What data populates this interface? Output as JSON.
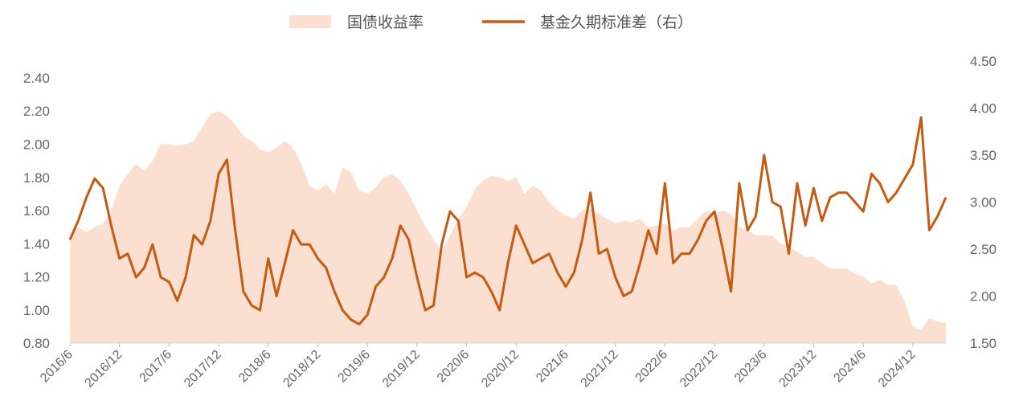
{
  "chart_data": {
    "type": "area",
    "legend": {
      "placement": "top-center",
      "items": [
        {
          "label": "国债收益率",
          "kind": "area",
          "color": "#fbdfd0"
        },
        {
          "label": "基金久期标准差（右）",
          "kind": "line",
          "color": "#c55a11"
        }
      ]
    },
    "x": [
      "2016/6",
      "2016/12",
      "2017/6",
      "2017/12",
      "2018/6",
      "2018/12",
      "2019/6",
      "2019/12",
      "2020/6",
      "2020/12",
      "2021/6",
      "2021/12",
      "2022/6",
      "2022/12",
      "2023/6",
      "2023/12",
      "2024/6",
      "2024/12"
    ],
    "x_range": [
      "2016-06",
      "2025-04"
    ],
    "y_left": {
      "range": [
        0.8,
        2.4
      ],
      "ticks": [
        "2.40",
        "2.20",
        "2.00",
        "1.80",
        "1.60",
        "1.40",
        "1.20",
        "1.00",
        "0.80"
      ]
    },
    "y_right": {
      "range": [
        1.5,
        4.5
      ],
      "ticks": [
        "4.50",
        "4.00",
        "3.50",
        "3.00",
        "2.50",
        "2.00",
        "1.50"
      ]
    },
    "series": [
      {
        "name": "国债收益率",
        "axis": "left",
        "color": "#fbdfd0",
        "points": [
          [
            "2016-06",
            1.45
          ],
          [
            "2016-07",
            1.5
          ],
          [
            "2016-08",
            1.47
          ],
          [
            "2016-09",
            1.5
          ],
          [
            "2016-10",
            1.52
          ],
          [
            "2016-11",
            1.6
          ],
          [
            "2016-12",
            1.75
          ],
          [
            "2017-01",
            1.82
          ],
          [
            "2017-02",
            1.88
          ],
          [
            "2017-03",
            1.84
          ],
          [
            "2017-04",
            1.9
          ],
          [
            "2017-05",
            2.0
          ],
          [
            "2017-06",
            2.0
          ],
          [
            "2017-07",
            1.99
          ],
          [
            "2017-08",
            2.0
          ],
          [
            "2017-09",
            2.02
          ],
          [
            "2017-10",
            2.1
          ],
          [
            "2017-11",
            2.18
          ],
          [
            "2017-12",
            2.2
          ],
          [
            "2018-01",
            2.17
          ],
          [
            "2018-02",
            2.12
          ],
          [
            "2018-03",
            2.05
          ],
          [
            "2018-04",
            2.02
          ],
          [
            "2018-05",
            1.97
          ],
          [
            "2018-06",
            1.95
          ],
          [
            "2018-07",
            1.98
          ],
          [
            "2018-08",
            2.02
          ],
          [
            "2018-09",
            1.98
          ],
          [
            "2018-10",
            1.88
          ],
          [
            "2018-11",
            1.75
          ],
          [
            "2018-12",
            1.72
          ],
          [
            "2019-01",
            1.76
          ],
          [
            "2019-02",
            1.7
          ],
          [
            "2019-03",
            1.86
          ],
          [
            "2019-04",
            1.83
          ],
          [
            "2019-05",
            1.72
          ],
          [
            "2019-06",
            1.7
          ],
          [
            "2019-07",
            1.74
          ],
          [
            "2019-08",
            1.8
          ],
          [
            "2019-09",
            1.82
          ],
          [
            "2019-10",
            1.78
          ],
          [
            "2019-11",
            1.7
          ],
          [
            "2019-12",
            1.6
          ],
          [
            "2020-01",
            1.5
          ],
          [
            "2020-02",
            1.43
          ],
          [
            "2020-03",
            1.35
          ],
          [
            "2020-04",
            1.45
          ],
          [
            "2020-05",
            1.55
          ],
          [
            "2020-06",
            1.62
          ],
          [
            "2020-07",
            1.73
          ],
          [
            "2020-08",
            1.78
          ],
          [
            "2020-09",
            1.81
          ],
          [
            "2020-10",
            1.8
          ],
          [
            "2020-11",
            1.78
          ],
          [
            "2020-12",
            1.8
          ],
          [
            "2021-01",
            1.7
          ],
          [
            "2021-02",
            1.75
          ],
          [
            "2021-03",
            1.72
          ],
          [
            "2021-04",
            1.65
          ],
          [
            "2021-05",
            1.6
          ],
          [
            "2021-06",
            1.57
          ],
          [
            "2021-07",
            1.55
          ],
          [
            "2021-08",
            1.6
          ],
          [
            "2021-09",
            1.61
          ],
          [
            "2021-10",
            1.58
          ],
          [
            "2021-11",
            1.55
          ],
          [
            "2021-12",
            1.52
          ],
          [
            "2022-01",
            1.54
          ],
          [
            "2022-02",
            1.53
          ],
          [
            "2022-03",
            1.55
          ],
          [
            "2022-04",
            1.5
          ],
          [
            "2022-05",
            1.51
          ],
          [
            "2022-06",
            1.52
          ],
          [
            "2022-07",
            1.48
          ],
          [
            "2022-08",
            1.5
          ],
          [
            "2022-09",
            1.5
          ],
          [
            "2022-10",
            1.55
          ],
          [
            "2022-11",
            1.6
          ],
          [
            "2022-12",
            1.58
          ],
          [
            "2023-01",
            1.6
          ],
          [
            "2023-02",
            1.58
          ],
          [
            "2023-03",
            1.5
          ],
          [
            "2023-04",
            1.48
          ],
          [
            "2023-05",
            1.45
          ],
          [
            "2023-06",
            1.45
          ],
          [
            "2023-07",
            1.45
          ],
          [
            "2023-08",
            1.4
          ],
          [
            "2023-09",
            1.38
          ],
          [
            "2023-10",
            1.35
          ],
          [
            "2023-11",
            1.32
          ],
          [
            "2023-12",
            1.32
          ],
          [
            "2024-01",
            1.28
          ],
          [
            "2024-02",
            1.25
          ],
          [
            "2024-03",
            1.25
          ],
          [
            "2024-04",
            1.25
          ],
          [
            "2024-05",
            1.22
          ],
          [
            "2024-06",
            1.2
          ],
          [
            "2024-07",
            1.16
          ],
          [
            "2024-08",
            1.18
          ],
          [
            "2024-09",
            1.15
          ],
          [
            "2024-10",
            1.15
          ],
          [
            "2024-11",
            1.05
          ],
          [
            "2024-12",
            0.9
          ],
          [
            "2025-01",
            0.88
          ],
          [
            "2025-02",
            0.95
          ],
          [
            "2025-03",
            0.93
          ],
          [
            "2025-04",
            0.92
          ]
        ]
      },
      {
        "name": "基金久期标准差（右）",
        "axis": "right",
        "color": "#c55a11",
        "points": [
          [
            "2016-06",
            2.6
          ],
          [
            "2016-07",
            2.8
          ],
          [
            "2016-08",
            3.05
          ],
          [
            "2016-09",
            3.25
          ],
          [
            "2016-10",
            3.15
          ],
          [
            "2016-11",
            2.75
          ],
          [
            "2016-12",
            2.4
          ],
          [
            "2017-01",
            2.45
          ],
          [
            "2017-02",
            2.2
          ],
          [
            "2017-03",
            2.3
          ],
          [
            "2017-04",
            2.55
          ],
          [
            "2017-05",
            2.2
          ],
          [
            "2017-06",
            2.15
          ],
          [
            "2017-07",
            1.95
          ],
          [
            "2017-08",
            2.2
          ],
          [
            "2017-09",
            2.65
          ],
          [
            "2017-10",
            2.55
          ],
          [
            "2017-11",
            2.8
          ],
          [
            "2017-12",
            3.3
          ],
          [
            "2018-01",
            3.45
          ],
          [
            "2018-02",
            2.7
          ],
          [
            "2018-03",
            2.05
          ],
          [
            "2018-04",
            1.9
          ],
          [
            "2018-05",
            1.85
          ],
          [
            "2018-06",
            2.4
          ],
          [
            "2018-07",
            2.0
          ],
          [
            "2018-08",
            2.35
          ],
          [
            "2018-09",
            2.7
          ],
          [
            "2018-10",
            2.55
          ],
          [
            "2018-11",
            2.55
          ],
          [
            "2018-12",
            2.4
          ],
          [
            "2019-01",
            2.3
          ],
          [
            "2019-02",
            2.05
          ],
          [
            "2019-03",
            1.85
          ],
          [
            "2019-04",
            1.75
          ],
          [
            "2019-05",
            1.7
          ],
          [
            "2019-06",
            1.8
          ],
          [
            "2019-07",
            2.1
          ],
          [
            "2019-08",
            2.2
          ],
          [
            "2019-09",
            2.4
          ],
          [
            "2019-10",
            2.75
          ],
          [
            "2019-11",
            2.6
          ],
          [
            "2019-12",
            2.2
          ],
          [
            "2020-01",
            1.85
          ],
          [
            "2020-02",
            1.9
          ],
          [
            "2020-03",
            2.55
          ],
          [
            "2020-04",
            2.9
          ],
          [
            "2020-05",
            2.8
          ],
          [
            "2020-06",
            2.2
          ],
          [
            "2020-07",
            2.25
          ],
          [
            "2020-08",
            2.2
          ],
          [
            "2020-09",
            2.05
          ],
          [
            "2020-10",
            1.85
          ],
          [
            "2020-11",
            2.35
          ],
          [
            "2020-12",
            2.75
          ],
          [
            "2021-01",
            2.55
          ],
          [
            "2021-02",
            2.35
          ],
          [
            "2021-03",
            2.4
          ],
          [
            "2021-04",
            2.45
          ],
          [
            "2021-05",
            2.25
          ],
          [
            "2021-06",
            2.1
          ],
          [
            "2021-07",
            2.25
          ],
          [
            "2021-08",
            2.6
          ],
          [
            "2021-09",
            3.1
          ],
          [
            "2021-10",
            2.45
          ],
          [
            "2021-11",
            2.5
          ],
          [
            "2021-12",
            2.2
          ],
          [
            "2022-01",
            2.0
          ],
          [
            "2022-02",
            2.05
          ],
          [
            "2022-03",
            2.35
          ],
          [
            "2022-04",
            2.7
          ],
          [
            "2022-05",
            2.45
          ],
          [
            "2022-06",
            3.2
          ],
          [
            "2022-07",
            2.35
          ],
          [
            "2022-08",
            2.45
          ],
          [
            "2022-09",
            2.45
          ],
          [
            "2022-10",
            2.6
          ],
          [
            "2022-11",
            2.8
          ],
          [
            "2022-12",
            2.9
          ],
          [
            "2023-01",
            2.5
          ],
          [
            "2023-02",
            2.05
          ],
          [
            "2023-03",
            3.2
          ],
          [
            "2023-04",
            2.7
          ],
          [
            "2023-05",
            2.85
          ],
          [
            "2023-06",
            3.5
          ],
          [
            "2023-07",
            3.0
          ],
          [
            "2023-08",
            2.95
          ],
          [
            "2023-09",
            2.45
          ],
          [
            "2023-10",
            3.2
          ],
          [
            "2023-11",
            2.75
          ],
          [
            "2023-12",
            3.15
          ],
          [
            "2024-01",
            2.8
          ],
          [
            "2024-02",
            3.05
          ],
          [
            "2024-03",
            3.1
          ],
          [
            "2024-04",
            3.1
          ],
          [
            "2024-05",
            3.0
          ],
          [
            "2024-06",
            2.9
          ],
          [
            "2024-07",
            3.3
          ],
          [
            "2024-08",
            3.2
          ],
          [
            "2024-09",
            3.0
          ],
          [
            "2024-10",
            3.1
          ],
          [
            "2024-11",
            3.25
          ],
          [
            "2024-12",
            3.4
          ],
          [
            "2025-01",
            3.9
          ],
          [
            "2025-02",
            2.7
          ],
          [
            "2025-03",
            2.85
          ],
          [
            "2025-04",
            3.05
          ]
        ]
      }
    ]
  }
}
